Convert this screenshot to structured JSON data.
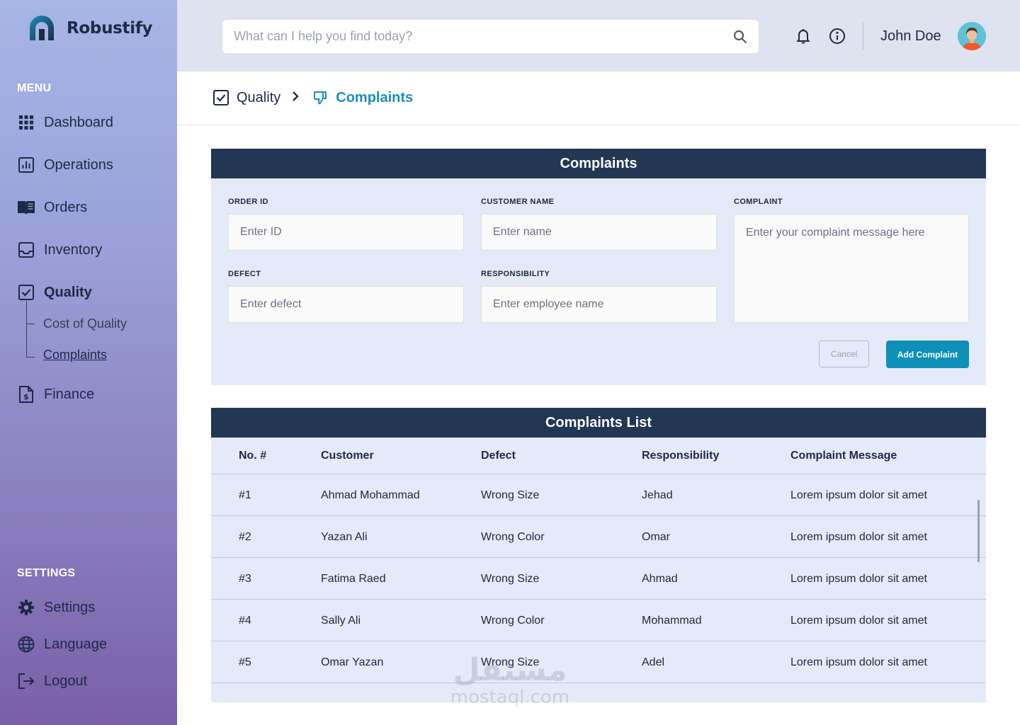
{
  "app": {
    "name": "Robustify"
  },
  "sidebar": {
    "menu_heading": "MENU",
    "items": [
      {
        "label": "Dashboard",
        "icon": "grid-icon"
      },
      {
        "label": "Operations",
        "icon": "chart-icon"
      },
      {
        "label": "Orders",
        "icon": "book-icon"
      },
      {
        "label": "Inventory",
        "icon": "inbox-icon"
      },
      {
        "label": "Quality",
        "icon": "checkbox-icon",
        "active": true
      },
      {
        "label": "Finance",
        "icon": "invoice-icon"
      }
    ],
    "quality_sub": [
      {
        "label": "Cost of Quality"
      },
      {
        "label": "Complaints",
        "active": true
      }
    ],
    "settings_heading": "SETTINGS",
    "settings_items": [
      {
        "label": "Settings",
        "icon": "gear-icon"
      },
      {
        "label": "Language",
        "icon": "globe-icon"
      },
      {
        "label": "Logout",
        "icon": "logout-icon"
      }
    ]
  },
  "header": {
    "search_placeholder": "What can I help you find today?",
    "user_name": "John Doe"
  },
  "breadcrumb": {
    "parent": "Quality",
    "current": "Complaints"
  },
  "form": {
    "title": "Complaints",
    "order_id": {
      "label": "ORDER ID",
      "placeholder": "Enter ID",
      "value": ""
    },
    "customer_name": {
      "label": "CUSTOMER NAME",
      "placeholder": "Enter name",
      "value": ""
    },
    "complaint": {
      "label": "COMPLAINT",
      "placeholder": "Enter your complaint message here",
      "value": ""
    },
    "defect": {
      "label": "DEFECT",
      "placeholder": "Enter defect",
      "value": ""
    },
    "responsibility": {
      "label": "RESPONSIBILITY",
      "placeholder": "Enter employee name",
      "value": ""
    },
    "cancel_label": "Cancel",
    "add_label": "Add Complaint"
  },
  "table": {
    "title": "Complaints List",
    "columns": [
      "No. #",
      "Customer",
      "Defect",
      "Responsibility",
      "Complaint Message"
    ],
    "rows": [
      [
        "#1",
        "Ahmad Mohammad",
        "Wrong Size",
        "Jehad",
        "Lorem ipsum dolor sit amet"
      ],
      [
        "#2",
        "Yazan Ali",
        "Wrong Color",
        "Omar",
        "Lorem ipsum dolor sit amet"
      ],
      [
        "#3",
        "Fatima Raed",
        "Wrong Size",
        "Ahmad",
        "Lorem ipsum dolor sit amet"
      ],
      [
        "#4",
        "Sally Ali",
        "Wrong Color",
        "Mohammad",
        "Lorem ipsum dolor sit amet"
      ],
      [
        "#5",
        "Omar Yazan",
        "Wrong Size",
        "Adel",
        "Lorem ipsum dolor sit amet"
      ]
    ]
  },
  "watermark": {
    "arabic": "مستقل",
    "latin": "mostaql.com"
  },
  "colors": {
    "accent": "#1a8fb9",
    "button": "#0e90b8",
    "header_dark": "#213754",
    "card_bg": "#e5eaf8",
    "topbar_bg": "#dfe2ef"
  }
}
